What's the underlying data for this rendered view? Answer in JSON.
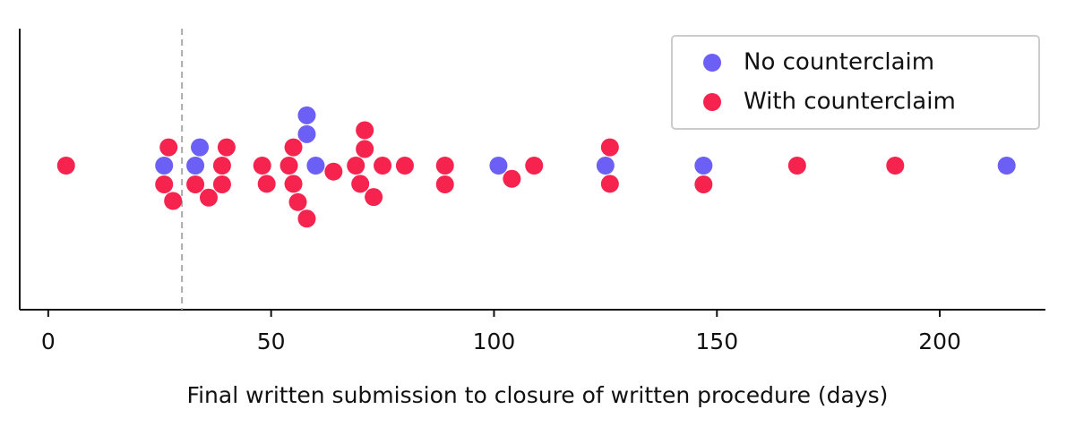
{
  "chart_data": {
    "type": "swarm",
    "xlabel": "Final written submission to closure of written procedure (days)",
    "series": [
      {
        "name": "No counterclaim",
        "color": "#6b5ff5",
        "values": [
          26,
          34,
          33,
          58,
          60,
          58,
          101,
          125,
          147,
          215
        ]
      },
      {
        "name": "With counterclaim",
        "color": "#f7234f",
        "values": [
          4,
          27,
          26,
          28,
          33,
          40,
          39,
          39,
          36,
          48,
          49,
          55,
          54,
          55,
          56,
          58,
          64,
          71,
          71,
          69,
          70,
          73,
          75,
          80,
          89,
          89,
          109,
          104,
          126,
          126,
          147,
          168,
          190
        ]
      }
    ],
    "vline": 30,
    "xlim": [
      -6.4,
      223.7
    ],
    "xticks": [
      0,
      50,
      100,
      150,
      200
    ],
    "legend": "upper right"
  }
}
